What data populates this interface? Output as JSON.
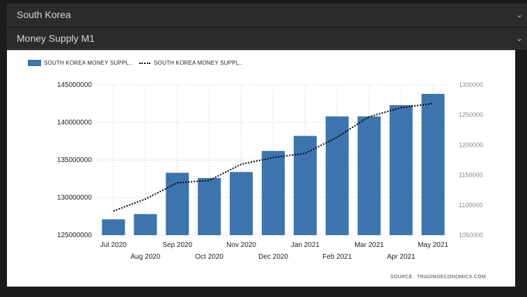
{
  "dropdowns": [
    {
      "label": "South Korea"
    },
    {
      "label": "Money Supply M1"
    }
  ],
  "chart": {
    "source_label": "SOURCE:",
    "source": "TRADINGECONOMICS.COM"
  },
  "colors": {
    "bar": "#3d74ad",
    "line": "#000000",
    "grid": "#cccccc"
  },
  "chart_data": {
    "type": "bar",
    "categories": [
      "Jul 2020",
      "Aug 2020",
      "Sep 2020",
      "Oct 2020",
      "Nov 2020",
      "Dec 2020",
      "Jan 2021",
      "Feb 2021",
      "Mar 2021",
      "Apr 2021",
      "May 2021"
    ],
    "series": [
      {
        "name": "SOUTH KOREA MONEY SUPPL..",
        "type": "bar",
        "axis": "left",
        "values": [
          127100000,
          127800000,
          133300000,
          132600000,
          133400000,
          136200000,
          138200000,
          140800000,
          140800000,
          142300000,
          143800000
        ]
      },
      {
        "name": "SOUTH KOREA MONEY SUPPL..",
        "type": "line",
        "axis": "right",
        "values": [
          1090000,
          1110000,
          1137000,
          1141000,
          1168000,
          1179000,
          1186000,
          1213000,
          1247000,
          1262000,
          1269000
        ]
      }
    ],
    "yticks_left": [
      "145000000",
      "140000000",
      "135000000",
      "130000000",
      "125000000"
    ],
    "yticks_right": [
      "1300000",
      "1250000",
      "1200000",
      "1150000",
      "1100000",
      "1050000"
    ],
    "ylim_left": [
      125000000,
      145000000
    ],
    "ylim_right": [
      1050000,
      1300000
    ],
    "grid": true,
    "legend_position": "top-left"
  }
}
